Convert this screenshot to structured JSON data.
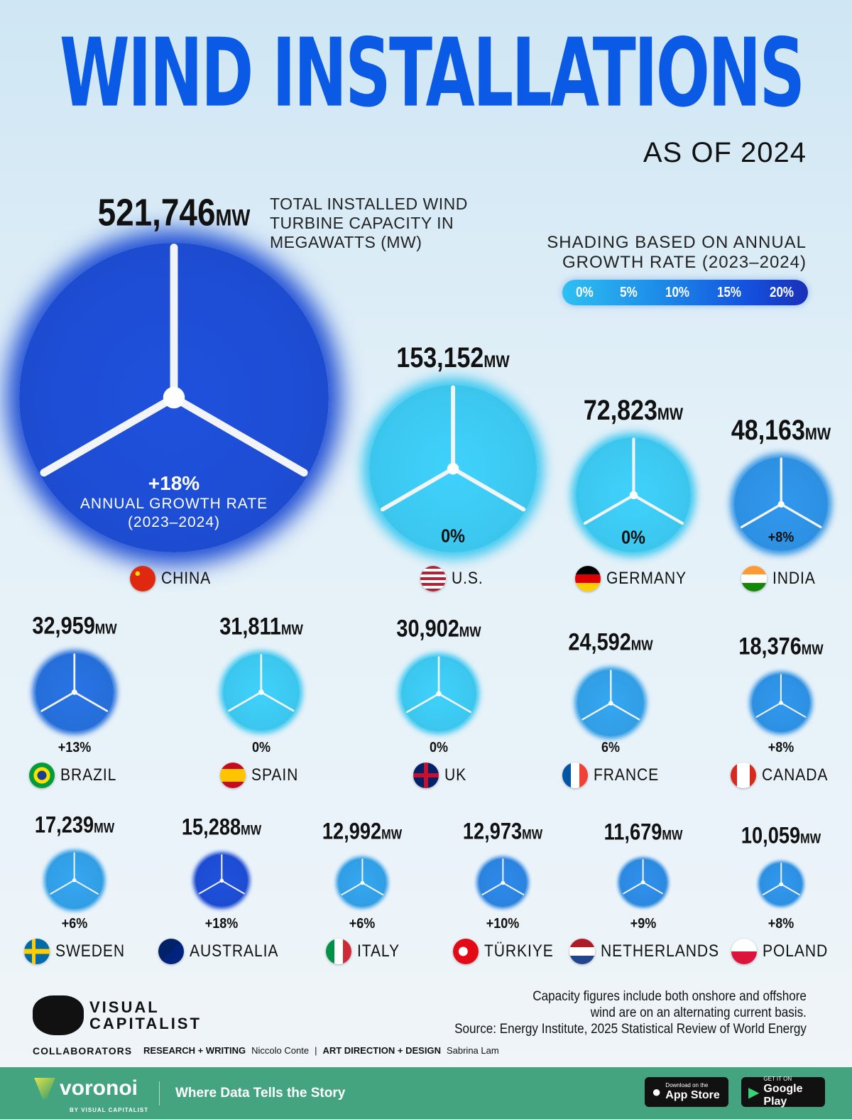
{
  "title": "WIND INSTALLATIONS",
  "subtitle": "AS OF 2024",
  "description": "TOTAL INSTALLED WIND TURBINE CAPACITY IN MEGAWATTS (MW)",
  "legend": {
    "title_line1": "SHADING BASED ON ANNUAL",
    "title_line2": "GROWTH RATE (2023–2024)",
    "ticks": [
      "0%",
      "5%",
      "10%",
      "15%",
      "20%"
    ],
    "color_low": "#3cc8f0",
    "color_high": "#1a3fd0"
  },
  "china_growth_caption": {
    "line1": "ANNUAL GROWTH RATE",
    "line2": "(2023–2024)"
  },
  "unit": "MW",
  "chart_data": {
    "type": "bubble",
    "title": "WIND INSTALLATIONS",
    "subtitle": "AS OF 2024",
    "size_metric": "Total installed wind turbine capacity (MW)",
    "color_metric": "Annual growth rate 2023–2024 (%)",
    "color_range": [
      0,
      20
    ],
    "items": [
      {
        "country": "CHINA",
        "capacity": "521,746",
        "capacity_value": 521746,
        "growth": "+18%",
        "growth_value": 18
      },
      {
        "country": "U.S.",
        "capacity": "153,152",
        "capacity_value": 153152,
        "growth": "0%",
        "growth_value": 0
      },
      {
        "country": "GERMANY",
        "capacity": "72,823",
        "capacity_value": 72823,
        "growth": "0%",
        "growth_value": 0
      },
      {
        "country": "INDIA",
        "capacity": "48,163",
        "capacity_value": 48163,
        "growth": "+8%",
        "growth_value": 8
      },
      {
        "country": "BRAZIL",
        "capacity": "32,959",
        "capacity_value": 32959,
        "growth": "+13%",
        "growth_value": 13
      },
      {
        "country": "SPAIN",
        "capacity": "31,811",
        "capacity_value": 31811,
        "growth": "0%",
        "growth_value": 0
      },
      {
        "country": "UK",
        "capacity": "30,902",
        "capacity_value": 30902,
        "growth": "0%",
        "growth_value": 0
      },
      {
        "country": "FRANCE",
        "capacity": "24,592",
        "capacity_value": 24592,
        "growth": "6%",
        "growth_value": 6
      },
      {
        "country": "CANADA",
        "capacity": "18,376",
        "capacity_value": 18376,
        "growth": "+8%",
        "growth_value": 8
      },
      {
        "country": "SWEDEN",
        "capacity": "17,239",
        "capacity_value": 17239,
        "growth": "+6%",
        "growth_value": 6
      },
      {
        "country": "AUSTRALIA",
        "capacity": "15,288",
        "capacity_value": 15288,
        "growth": "+18%",
        "growth_value": 18
      },
      {
        "country": "ITALY",
        "capacity": "12,992",
        "capacity_value": 12992,
        "growth": "+6%",
        "growth_value": 6
      },
      {
        "country": "TÜRKIYE",
        "capacity": "12,973",
        "capacity_value": 12973,
        "growth": "+10%",
        "growth_value": 10
      },
      {
        "country": "NETHERLANDS",
        "capacity": "11,679",
        "capacity_value": 11679,
        "growth": "+9%",
        "growth_value": 9
      },
      {
        "country": "POLAND",
        "capacity": "10,059",
        "capacity_value": 10059,
        "growth": "+8%",
        "growth_value": 8
      }
    ]
  },
  "notes": {
    "line1": "Capacity figures include both onshore and offshore",
    "line2": "wind are on an alternating current basis.",
    "source": "Source: Energy Institute, 2025 Statistical Review of World Energy"
  },
  "brand": {
    "line1": "VISUAL",
    "line2": "CAPITALIST"
  },
  "credits": {
    "label": "COLLABORATORS",
    "research_label": "RESEARCH + WRITING",
    "research_name": "Niccolo Conte",
    "design_label": "ART DIRECTION + DESIGN",
    "design_name": "Sabrina Lam"
  },
  "footer": {
    "brand": "voronoi",
    "brand_sub": "BY VISUAL CAPITALIST",
    "tagline": "Where Data Tells the Story",
    "appstore_small": "Download on the",
    "appstore": "App Store",
    "play_small": "GET IT ON",
    "play": "Google Play"
  }
}
